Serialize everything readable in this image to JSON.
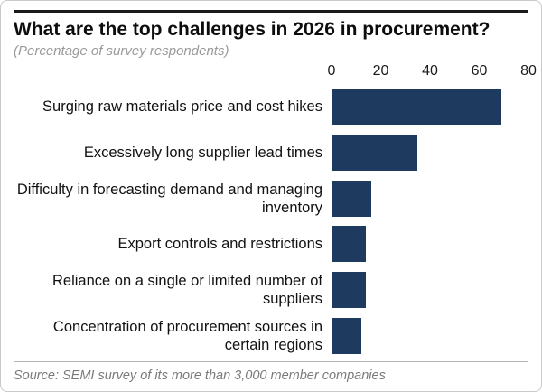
{
  "header": {
    "title": "What are the top challenges in 2026 in procurement?",
    "subtitle": "(Percentage of survey respondents)"
  },
  "footer": {
    "source": "Source: SEMI survey of its more than 3,000 member companies"
  },
  "colors": {
    "bar": "#1f3a5f",
    "title_text": "#0d0d0d",
    "muted_text": "#9a9a9a"
  },
  "chart_data": {
    "type": "bar",
    "orientation": "horizontal",
    "title": "What are the top challenges in 2026 in procurement?",
    "subtitle": "(Percentage of survey respondents)",
    "categories": [
      "Surging raw materials price and cost hikes",
      "Excessively long supplier lead times",
      "Difficulty in forecasting demand and managing inventory",
      "Export controls and restrictions",
      "Reliance on a single or limited number of suppliers",
      "Concentration of procurement sources in certain regions"
    ],
    "values": [
      69,
      35,
      16,
      14,
      14,
      12
    ],
    "xlabel": "",
    "ylabel": "",
    "xlim": [
      0,
      80
    ],
    "ticks": [
      "0",
      "20",
      "40",
      "60",
      "80"
    ],
    "tick_positions_pct": [
      0,
      25,
      50,
      75,
      100
    ],
    "axis_position": "top",
    "grid": false,
    "legend": false,
    "source": "Source: SEMI survey of its more than 3,000 member companies"
  }
}
